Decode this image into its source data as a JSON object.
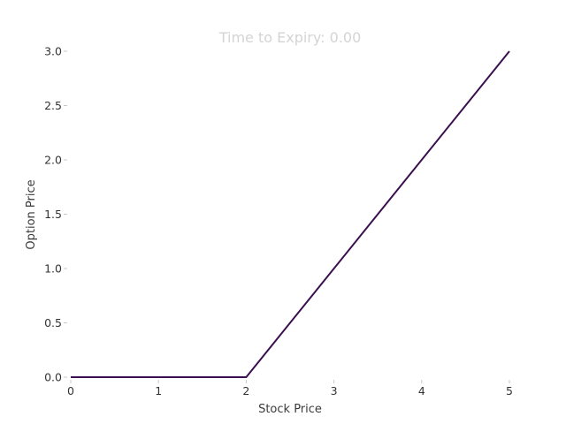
{
  "chart_data": {
    "type": "line",
    "title": "Time to Expiry: 0.00",
    "xlabel": "Stock Price",
    "ylabel": "Option Price",
    "xlim": [
      0,
      5
    ],
    "ylim": [
      0,
      3
    ],
    "xticks": [
      0,
      1,
      2,
      3,
      4,
      5
    ],
    "xtick_labels": [
      "0",
      "1",
      "2",
      "3",
      "4",
      "5"
    ],
    "yticks": [
      0.0,
      0.5,
      1.0,
      1.5,
      2.0,
      2.5,
      3.0
    ],
    "ytick_labels": [
      "0.0",
      "0.5",
      "1.0",
      "1.5",
      "2.0",
      "2.5",
      "3.0"
    ],
    "grid": false,
    "series": [
      {
        "color": "#3b0f4f",
        "x": [
          0,
          1,
          2,
          3,
          4,
          5
        ],
        "y": [
          0,
          0,
          0,
          1,
          2,
          3
        ]
      }
    ]
  }
}
